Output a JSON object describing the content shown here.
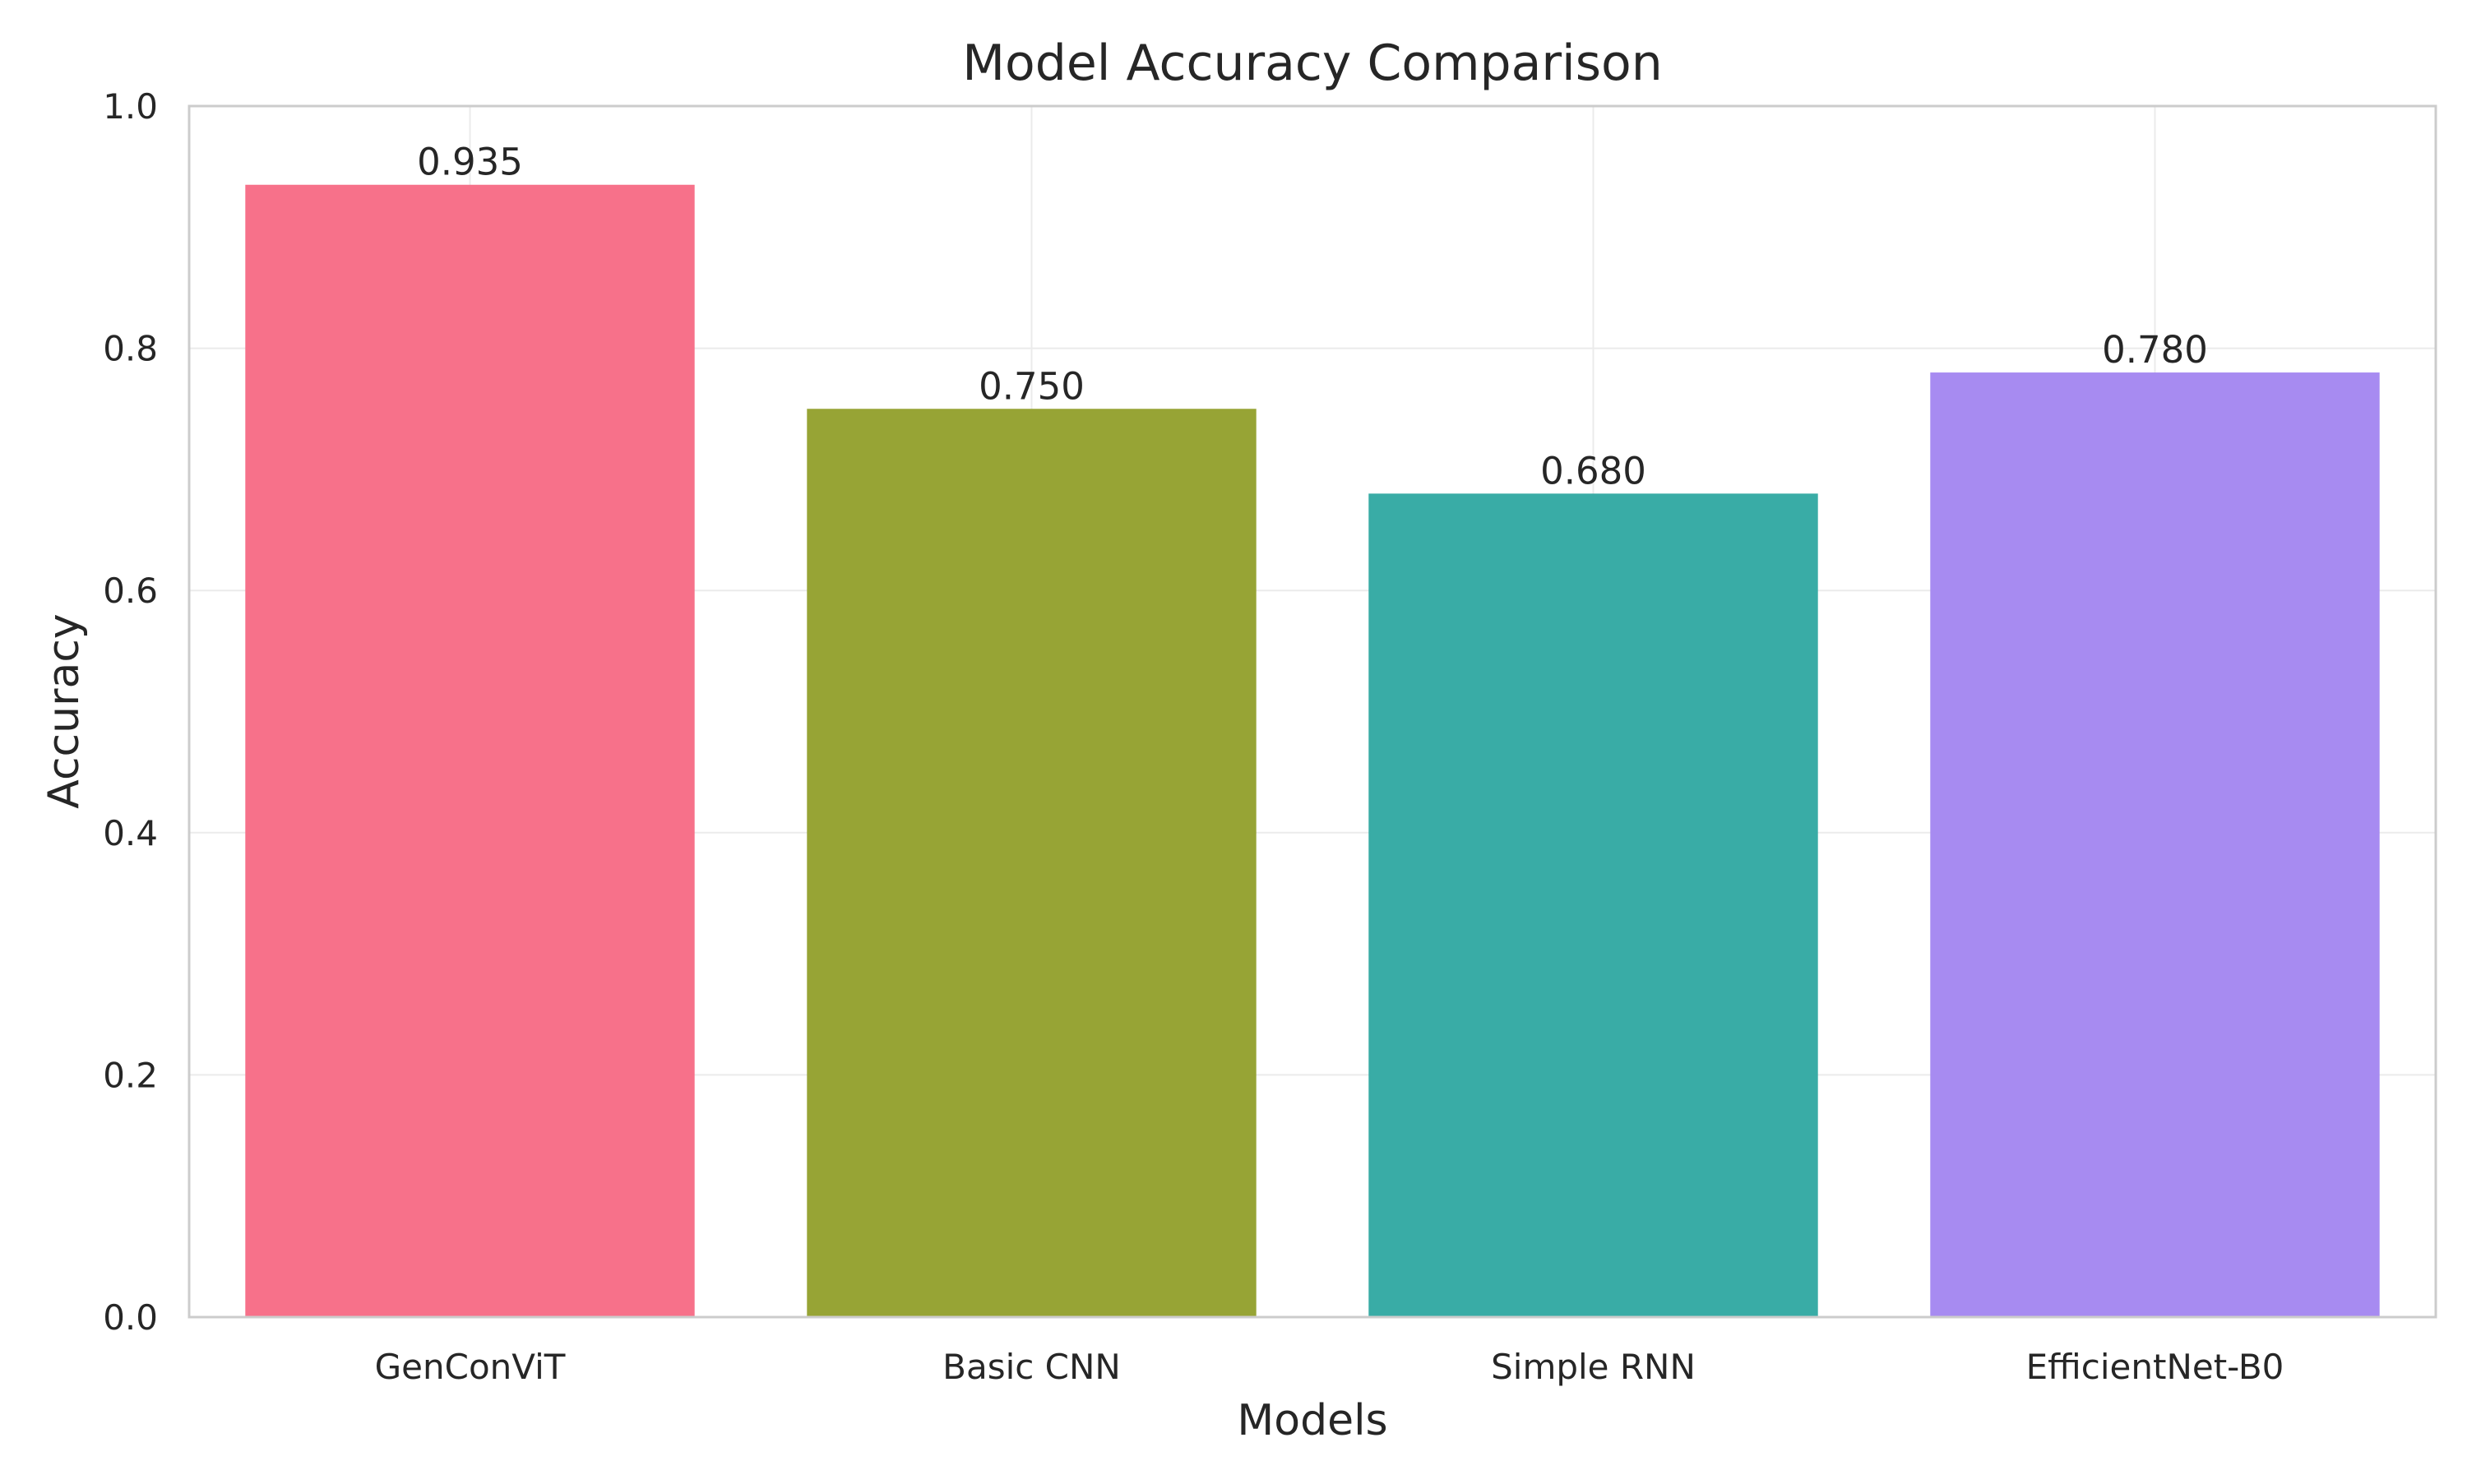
{
  "chart_data": {
    "type": "bar",
    "title": "Model Accuracy Comparison",
    "xlabel": "Models",
    "ylabel": "Accuracy",
    "categories": [
      "GenConViT",
      "Basic CNN",
      "Simple RNN",
      "EfficientNet-B0"
    ],
    "values": [
      0.935,
      0.75,
      0.68,
      0.78
    ],
    "value_labels": [
      "0.935",
      "0.750",
      "0.680",
      "0.780"
    ],
    "colors": [
      "#f7718a",
      "#97a435",
      "#39aca6",
      "#a78bf1"
    ],
    "ylim": [
      0,
      1.0
    ],
    "yticks": [
      0.0,
      0.2,
      0.4,
      0.6,
      0.8,
      1.0
    ],
    "ytick_labels": [
      "0.0",
      "0.2",
      "0.4",
      "0.6",
      "0.8",
      "1.0"
    ],
    "grid": true,
    "legend": "none"
  }
}
